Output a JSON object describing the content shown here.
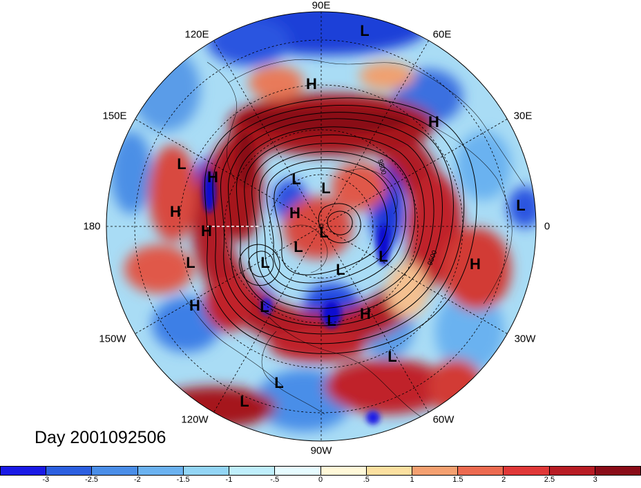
{
  "day_label": "Day 2001092506",
  "longitude_labels": [
    "90E",
    "60E",
    "30E",
    "0",
    "30W",
    "60W",
    "90W",
    "120W",
    "150W",
    "180",
    "150E",
    "120E"
  ],
  "contour_labels": [
    "9500",
    "9500"
  ],
  "pressure_systems": [
    "L",
    "H",
    "H",
    "L",
    "H",
    "L",
    "L",
    "H",
    "H",
    "L",
    "L",
    "H",
    "L",
    "L",
    "L",
    "L",
    "L",
    "H",
    "L",
    "L",
    "H",
    "L",
    "L",
    "L"
  ],
  "colorbar": {
    "ticks": [
      "-3",
      "-2.5",
      "-2",
      "-1.5",
      "-1",
      "-.5",
      "0",
      ".5",
      "1",
      "1.5",
      "2",
      "2.5",
      "3"
    ],
    "colors": [
      "#1a1ae6",
      "#2c5fe0",
      "#4a8ee8",
      "#6bb2f0",
      "#93d5f5",
      "#bfeefb",
      "#e6fbff",
      "#fff8d8",
      "#fbe0a0",
      "#f4a070",
      "#ec6a50",
      "#e03838",
      "#b81c24",
      "#8a0c18"
    ]
  },
  "colors": {
    "field_cool": "#3a6fe0",
    "field_warm": "#c0202a",
    "field_neutral": "#cfeefb"
  }
}
